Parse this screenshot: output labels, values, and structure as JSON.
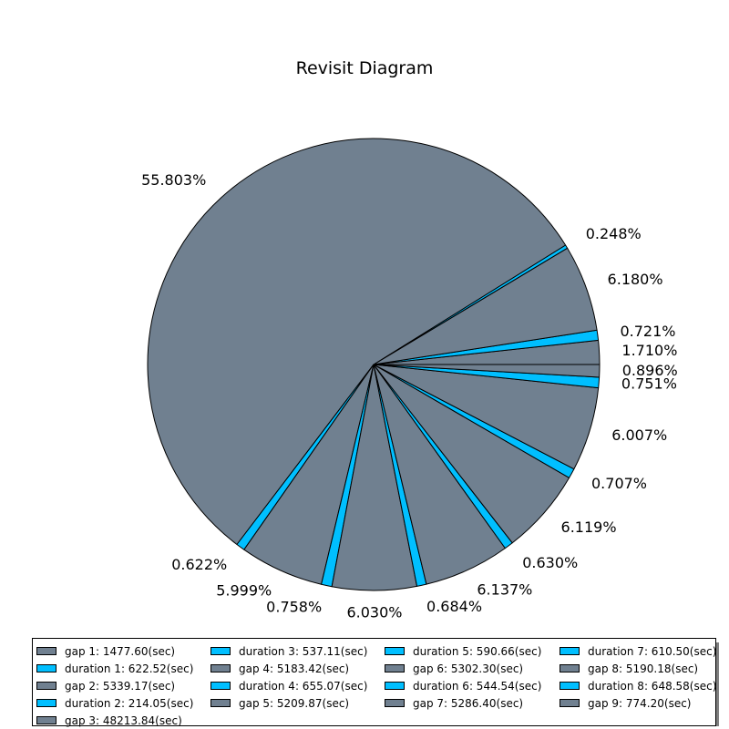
{
  "chart_data": {
    "type": "pie",
    "title": "Revisit Diagram",
    "start_angle_deg": 0,
    "direction": "counterclockwise",
    "slices": [
      {
        "name": "gap 1",
        "value": 1477.6,
        "pct_label": "1.710%",
        "color": "#708090"
      },
      {
        "name": "duration 1",
        "value": 622.52,
        "pct_label": "0.721%",
        "color": "#00BFFF"
      },
      {
        "name": "gap 2",
        "value": 5339.17,
        "pct_label": "6.180%",
        "color": "#708090"
      },
      {
        "name": "duration 2",
        "value": 214.05,
        "pct_label": "0.248%",
        "color": "#00BFFF"
      },
      {
        "name": "gap 3",
        "value": 48213.84,
        "pct_label": "55.803%",
        "color": "#708090"
      },
      {
        "name": "duration 3",
        "value": 537.11,
        "pct_label": "0.622%",
        "color": "#00BFFF"
      },
      {
        "name": "gap 4",
        "value": 5183.42,
        "pct_label": "5.999%",
        "color": "#708090"
      },
      {
        "name": "duration 4",
        "value": 655.07,
        "pct_label": "0.758%",
        "color": "#00BFFF"
      },
      {
        "name": "gap 5",
        "value": 5209.87,
        "pct_label": "6.030%",
        "color": "#708090"
      },
      {
        "name": "duration 5",
        "value": 590.66,
        "pct_label": "0.684%",
        "color": "#00BFFF"
      },
      {
        "name": "gap 6",
        "value": 5302.3,
        "pct_label": "6.137%",
        "color": "#708090"
      },
      {
        "name": "duration 6",
        "value": 544.54,
        "pct_label": "0.630%",
        "color": "#00BFFF"
      },
      {
        "name": "gap 7",
        "value": 5286.4,
        "pct_label": "6.119%",
        "color": "#708090"
      },
      {
        "name": "duration 7",
        "value": 610.5,
        "pct_label": "0.707%",
        "color": "#00BFFF"
      },
      {
        "name": "gap 8",
        "value": 5190.18,
        "pct_label": "6.007%",
        "color": "#708090"
      },
      {
        "name": "duration 8",
        "value": 648.58,
        "pct_label": "0.751%",
        "color": "#00BFFF"
      },
      {
        "name": "gap 9",
        "value": 774.2,
        "pct_label": "0.896%",
        "color": "#708090"
      }
    ],
    "legend": {
      "placement": "bottom",
      "columns": [
        [
          "gap 1: 1477.60(sec)",
          "duration 1: 622.52(sec)",
          "gap 2: 5339.17(sec)",
          "duration 2: 214.05(sec)",
          "gap 3: 48213.84(sec)"
        ],
        [
          "duration 3: 537.11(sec)",
          "gap 4: 5183.42(sec)",
          "duration 4: 655.07(sec)",
          "gap 5: 5209.87(sec)"
        ],
        [
          "duration 5: 590.66(sec)",
          "gap 6: 5302.30(sec)",
          "duration 6: 544.54(sec)",
          "gap 7: 5286.40(sec)"
        ],
        [
          "duration 7: 610.50(sec)",
          "gap 8: 5190.18(sec)",
          "duration 8: 648.58(sec)",
          "gap 9: 774.20(sec)"
        ]
      ]
    }
  }
}
